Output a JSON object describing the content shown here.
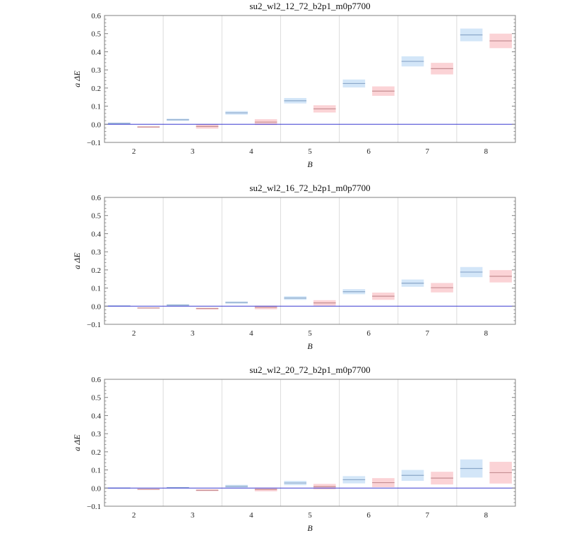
{
  "figure": {
    "background": "#ffffff"
  },
  "colors": {
    "blue_fill": "#d3e6f8",
    "blue_line": "#8aa7c9",
    "red_fill": "#fbd3d6",
    "red_line": "#c58e92",
    "zero_line": "#3a3ad0",
    "separator": "#dcdcdc",
    "frame": "#808080"
  },
  "chart_data": [
    {
      "type": "bar",
      "title": "su2_wl2_12_72_b2p1_m0p7700",
      "xlabel": "B",
      "ylabel": "a ΔE",
      "ylim": [
        -0.1,
        0.6
      ],
      "yticks": [
        "−0.1",
        "0.0",
        "0.1",
        "0.2",
        "0.3",
        "0.4",
        "0.5",
        "0.6"
      ],
      "categories": [
        "2",
        "3",
        "4",
        "5",
        "6",
        "7",
        "8"
      ],
      "grid": false,
      "series": [
        {
          "color": "blue",
          "values": [
            0.005,
            0.025,
            0.063,
            0.13,
            0.225,
            0.347,
            0.493
          ],
          "errors": [
            0.004,
            0.006,
            0.01,
            0.015,
            0.022,
            0.028,
            0.035
          ]
        },
        {
          "color": "red",
          "values": [
            -0.015,
            -0.012,
            0.012,
            0.085,
            0.183,
            0.307,
            0.46
          ],
          "errors": [
            0.004,
            0.012,
            0.016,
            0.02,
            0.026,
            0.032,
            0.04
          ]
        }
      ]
    },
    {
      "type": "bar",
      "title": "su2_wl2_16_72_b2p1_m0p7700",
      "xlabel": "B",
      "ylabel": "a ΔE",
      "ylim": [
        -0.1,
        0.6
      ],
      "yticks": [
        "−0.1",
        "0.0",
        "0.1",
        "0.2",
        "0.3",
        "0.4",
        "0.5",
        "0.6"
      ],
      "categories": [
        "2",
        "3",
        "4",
        "5",
        "6",
        "7",
        "8"
      ],
      "grid": false,
      "series": [
        {
          "color": "blue",
          "values": [
            0.001,
            0.006,
            0.02,
            0.045,
            0.08,
            0.127,
            0.188
          ],
          "errors": [
            0.003,
            0.004,
            0.006,
            0.01,
            0.014,
            0.02,
            0.028
          ]
        },
        {
          "color": "red",
          "values": [
            -0.01,
            -0.013,
            -0.007,
            0.018,
            0.055,
            0.102,
            0.165
          ],
          "errors": [
            0.003,
            0.005,
            0.01,
            0.015,
            0.02,
            0.026,
            0.034
          ]
        }
      ]
    },
    {
      "type": "bar",
      "title": "su2_wl2_20_72_b2p1_m0p7700",
      "xlabel": "B",
      "ylabel": "a ΔE",
      "ylim": [
        -0.1,
        0.6
      ],
      "yticks": [
        "−0.1",
        "0.0",
        "0.1",
        "0.2",
        "0.3",
        "0.4",
        "0.5",
        "0.6"
      ],
      "categories": [
        "2",
        "3",
        "4",
        "5",
        "6",
        "7",
        "8"
      ],
      "grid": false,
      "series": [
        {
          "color": "blue",
          "values": [
            0.0,
            0.002,
            0.01,
            0.028,
            0.046,
            0.07,
            0.108
          ],
          "errors": [
            0.003,
            0.004,
            0.008,
            0.012,
            0.02,
            0.03,
            0.05
          ]
        },
        {
          "color": "red",
          "values": [
            -0.007,
            -0.012,
            -0.008,
            0.008,
            0.03,
            0.055,
            0.085
          ],
          "errors": [
            0.003,
            0.005,
            0.01,
            0.015,
            0.025,
            0.035,
            0.06
          ]
        }
      ]
    }
  ]
}
